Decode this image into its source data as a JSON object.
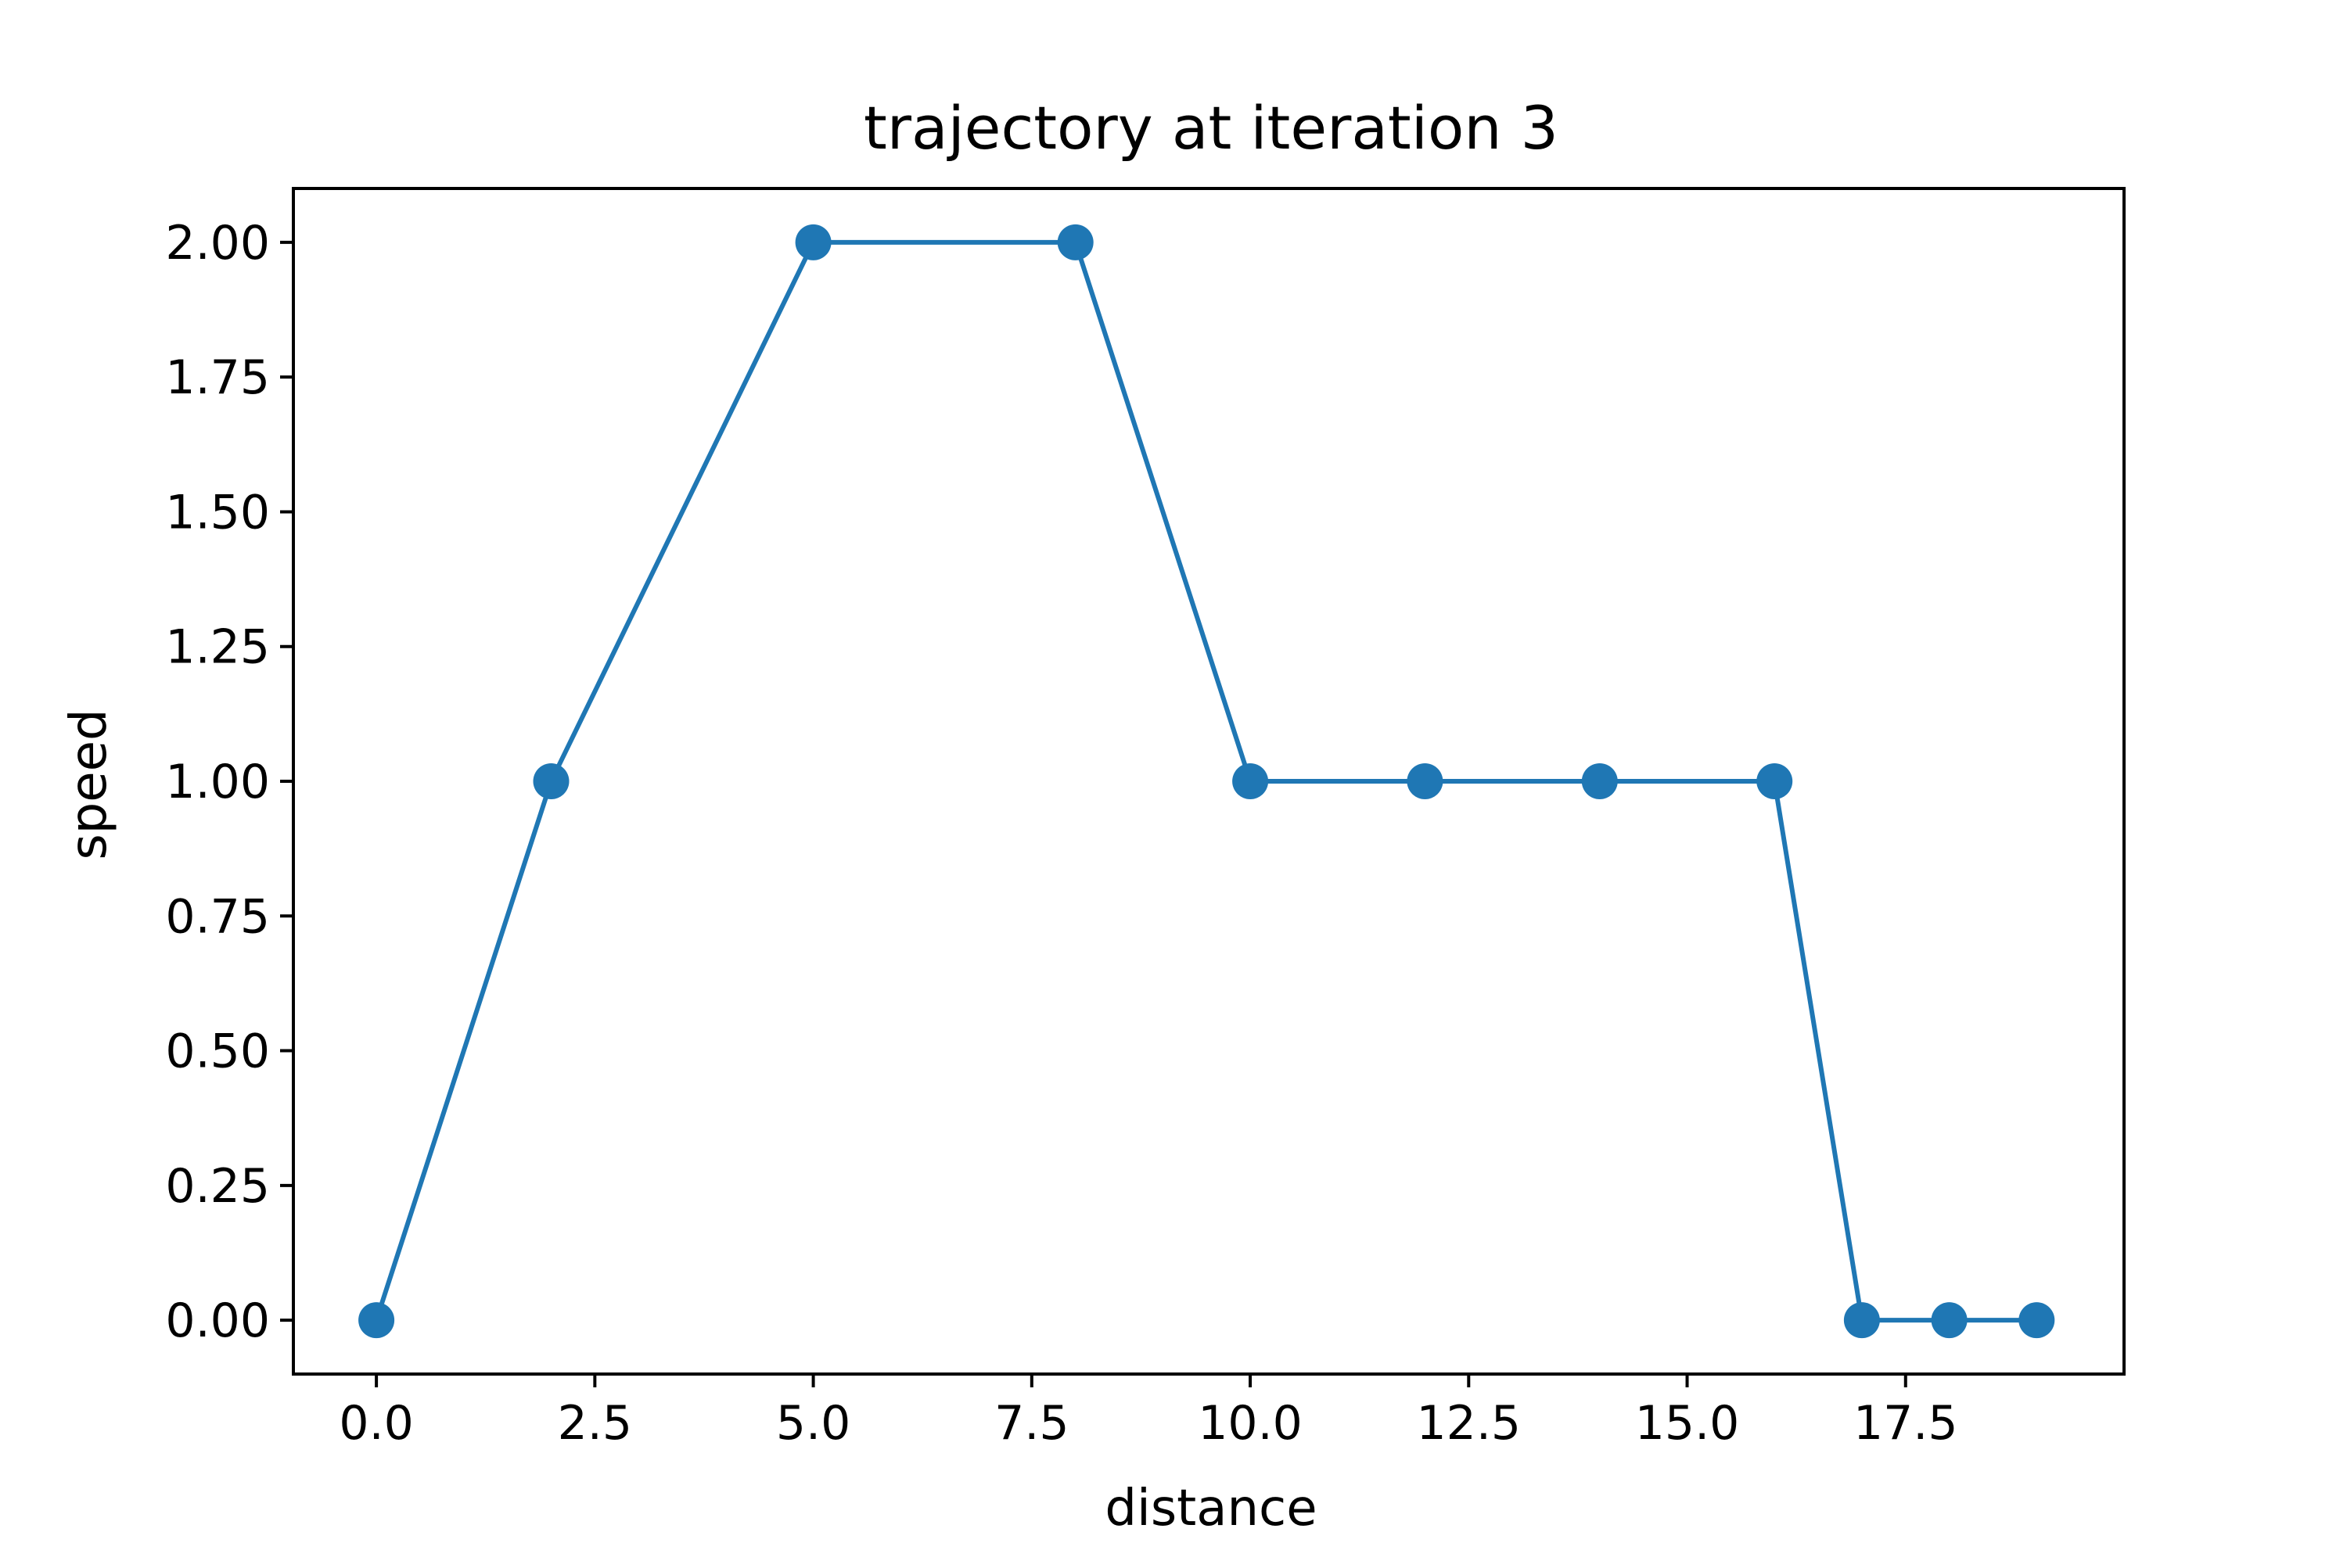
{
  "chart_data": {
    "type": "line",
    "title": "trajectory at iteration 3",
    "xlabel": "distance",
    "ylabel": "speed",
    "xlim": [
      -0.95,
      20.0
    ],
    "ylim": [
      -0.1,
      2.1
    ],
    "xticks": [
      0.0,
      2.5,
      5.0,
      7.5,
      10.0,
      12.5,
      15.0,
      17.5
    ],
    "xtick_labels": [
      "0.0",
      "2.5",
      "5.0",
      "7.5",
      "10.0",
      "12.5",
      "15.0",
      "17.5"
    ],
    "yticks": [
      0.0,
      0.25,
      0.5,
      0.75,
      1.0,
      1.25,
      1.5,
      1.75,
      2.0
    ],
    "ytick_labels": [
      "0.00",
      "0.25",
      "0.50",
      "0.75",
      "1.00",
      "1.25",
      "1.50",
      "1.75",
      "2.00"
    ],
    "grid": false,
    "marker": "circle",
    "series": [
      {
        "x": [
          0,
          2,
          5,
          8,
          10,
          12,
          14,
          16,
          17,
          18,
          19
        ],
        "y": [
          0,
          1,
          2,
          2,
          1,
          1,
          1,
          1,
          0,
          0,
          0
        ]
      }
    ],
    "colors": {
      "line": "#1f77b4",
      "axes": "#000000"
    }
  }
}
